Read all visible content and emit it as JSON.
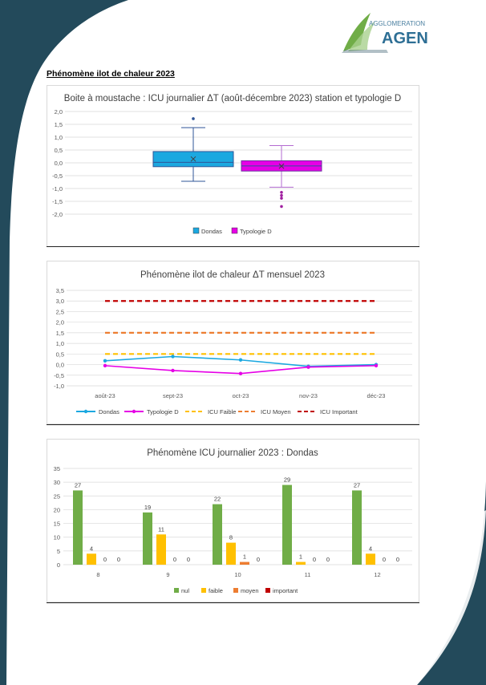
{
  "page": {
    "section_title": "Phénomène ilot de chaleur 2023"
  },
  "logo": {
    "top_text": "AGGLOMERATION",
    "main_text": "AGEN"
  },
  "colors": {
    "dark_teal": "#234a5b",
    "green": "#70ad47",
    "yellow": "#ffc000",
    "orange": "#ed7d31",
    "red": "#c00000",
    "cyan": "#1ba8e0",
    "magenta": "#e600e6"
  },
  "chart_data": [
    {
      "type": "boxplot",
      "title": "Boite à moustache : ICU journalier ΔT (août-décembre 2023) station et typologie D",
      "ylim": [
        -2.0,
        2.0
      ],
      "yticks": [
        "2,0",
        "1,5",
        "1,0",
        "0,5",
        "0,0",
        "-0,5",
        "-1,0",
        "-1,5",
        "-2,0"
      ],
      "grid": true,
      "legend_position": "bottom",
      "series": [
        {
          "name": "Dondas",
          "color": "#1ba8e0",
          "min": -0.72,
          "q1": -0.15,
          "median": 0.02,
          "q3": 0.44,
          "max": 1.37,
          "mean": 0.15,
          "outliers": [
            1.72
          ]
        },
        {
          "name": "Typologie D",
          "color": "#e600e6",
          "min": -0.95,
          "q1": -0.32,
          "median": -0.12,
          "q3": 0.08,
          "max": 0.67,
          "mean": -0.13,
          "outliers": [
            -1.15,
            -1.27,
            -1.38,
            -1.7
          ]
        }
      ]
    },
    {
      "type": "line",
      "title": "Phénomène ilot de chaleur ΔT mensuel 2023",
      "categories": [
        "août-23",
        "sept-23",
        "oct-23",
        "nov-23",
        "déc-23"
      ],
      "ylim": [
        -1.0,
        3.5
      ],
      "yticks": [
        "3,5",
        "3,0",
        "2,5",
        "2,0",
        "1,5",
        "1,0",
        "0,5",
        "0,0",
        "-0,5",
        "-1,0"
      ],
      "grid": true,
      "legend_position": "bottom",
      "series": [
        {
          "name": "Dondas",
          "color": "#1ba8e0",
          "style": "solid",
          "marker": true,
          "values": [
            0.18,
            0.38,
            0.22,
            -0.08,
            0.0
          ]
        },
        {
          "name": "Typologie D",
          "color": "#e600e6",
          "style": "solid",
          "marker": true,
          "values": [
            -0.05,
            -0.28,
            -0.42,
            -0.12,
            -0.05
          ]
        },
        {
          "name": "ICU Faible",
          "color": "#ffc000",
          "style": "dashed",
          "marker": false,
          "values": [
            0.5,
            0.5,
            0.5,
            0.5,
            0.5
          ]
        },
        {
          "name": "ICU Moyen",
          "color": "#ed7d31",
          "style": "dashed",
          "marker": false,
          "values": [
            1.5,
            1.5,
            1.5,
            1.5,
            1.5
          ]
        },
        {
          "name": "ICU Important",
          "color": "#c00000",
          "style": "dashed",
          "marker": false,
          "values": [
            3.0,
            3.0,
            3.0,
            3.0,
            3.0
          ]
        }
      ]
    },
    {
      "type": "bar",
      "title": "Phénomène ICU journalier 2023 : Dondas",
      "categories": [
        "8",
        "9",
        "10",
        "11",
        "12"
      ],
      "ylim": [
        0,
        35
      ],
      "yticks": [
        "35",
        "30",
        "25",
        "20",
        "15",
        "10",
        "5",
        "0"
      ],
      "grid": true,
      "legend_position": "bottom",
      "series": [
        {
          "name": "nul",
          "color": "#70ad47",
          "values": [
            27,
            19,
            22,
            29,
            27
          ]
        },
        {
          "name": "faible",
          "color": "#ffc000",
          "values": [
            4,
            11,
            8,
            1,
            4
          ]
        },
        {
          "name": "moyen",
          "color": "#ed7d31",
          "values": [
            0,
            0,
            1,
            0,
            0
          ]
        },
        {
          "name": "important",
          "color": "#c00000",
          "values": [
            0,
            0,
            0,
            0,
            0
          ]
        }
      ]
    }
  ]
}
